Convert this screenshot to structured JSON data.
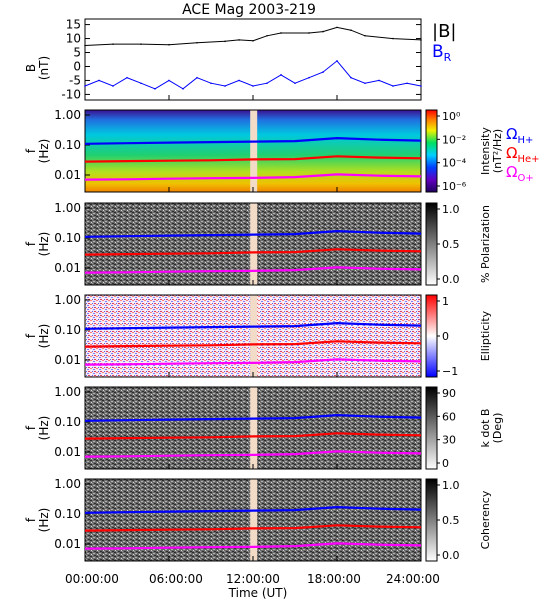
{
  "title": "ACE Mag 2003-219",
  "x_axis": {
    "label": "Time (UT)",
    "ticks": [
      "00:00:00",
      "06:00:00",
      "12:00:00",
      "18:00:00",
      "24:00:00"
    ]
  },
  "chart_data": [
    {
      "type": "line",
      "panel": "B",
      "ylabel": "B",
      "yunit": "(nT)",
      "xlim": [
        0,
        24
      ],
      "ylim": [
        -12,
        17
      ],
      "yticks": [
        "15",
        "10",
        "5",
        "0",
        "-5",
        "-10"
      ],
      "series": [
        {
          "name": "|B|",
          "color": "#000000",
          "x": [
            0,
            2,
            4,
            6,
            8,
            10,
            11,
            12,
            13,
            14,
            16,
            17,
            18,
            19,
            20,
            22,
            24
          ],
          "y": [
            7.5,
            8,
            8,
            7.8,
            8.5,
            9,
            9.5,
            9.2,
            11,
            12,
            12,
            12.5,
            14,
            13,
            11,
            10,
            9.5
          ]
        },
        {
          "name": "BR",
          "color": "#0000ff",
          "x": [
            0,
            1,
            2,
            3,
            4,
            5,
            6,
            7,
            8,
            9,
            10,
            11,
            12,
            13,
            14,
            15,
            16,
            17,
            18,
            19,
            20,
            21,
            22,
            23,
            24
          ],
          "y": [
            -7,
            -5,
            -7,
            -4,
            -6,
            -8,
            -5,
            -8,
            -4,
            -6,
            -7,
            -5,
            -7,
            -6,
            -3,
            -6,
            -4,
            -2,
            2,
            -4,
            -6,
            -5,
            -7,
            -6,
            -7
          ]
        }
      ]
    },
    {
      "type": "heatmap",
      "panel": "intensity",
      "ylabel": "f",
      "yunit": "(Hz)",
      "yticks": [
        "1.00",
        "0.10",
        "0.01"
      ],
      "colorbar_label": "Intensity",
      "colorbar_unit": "(nT²/Hz)",
      "colorbar_ticks": [
        "10⁰",
        "10⁻²",
        "10⁻⁴",
        "10⁻⁶"
      ],
      "data_gap_hours": [
        11.8,
        12.3
      ]
    },
    {
      "type": "heatmap",
      "panel": "polarization",
      "ylabel": "f",
      "yunit": "(Hz)",
      "yticks": [
        "1.00",
        "0.10",
        "0.01"
      ],
      "colorbar_label": "% Polarization",
      "colorbar_ticks": [
        "1.0",
        "0.5",
        "0.0"
      ],
      "data_gap_hours": [
        11.8,
        12.3
      ]
    },
    {
      "type": "heatmap",
      "panel": "ellipticity",
      "ylabel": "f",
      "yunit": "(Hz)",
      "yticks": [
        "1.00",
        "0.10",
        "0.01"
      ],
      "colorbar_label": "Ellipticity",
      "colorbar_ticks": [
        "1",
        "0",
        "−1"
      ],
      "data_gap_hours": [
        11.8,
        12.3
      ]
    },
    {
      "type": "heatmap",
      "panel": "kdotb",
      "ylabel": "f",
      "yunit": "(Hz)",
      "yticks": [
        "1.00",
        "0.10",
        "0.01"
      ],
      "colorbar_label": "k dot B",
      "colorbar_unit": "(Deg)",
      "colorbar_ticks": [
        "90",
        "60",
        "30",
        "0"
      ],
      "data_gap_hours": [
        11.8,
        12.3
      ]
    },
    {
      "type": "heatmap",
      "panel": "coherency",
      "ylabel": "f",
      "yunit": "(Hz)",
      "yticks": [
        "1.00",
        "0.10",
        "0.01"
      ],
      "colorbar_label": "Coherency",
      "colorbar_ticks": [
        "1.0",
        "0.5",
        "0.0"
      ],
      "data_gap_hours": [
        11.8,
        12.3
      ]
    }
  ],
  "gyrofrequencies": {
    "x_hours": [
      0,
      3,
      6,
      9,
      12,
      15,
      18,
      21,
      24
    ],
    "H": {
      "color": "#0000ff",
      "hz": [
        0.11,
        0.115,
        0.12,
        0.125,
        0.13,
        0.135,
        0.17,
        0.15,
        0.14
      ]
    },
    "He": {
      "color": "#ff0000",
      "hz": [
        0.028,
        0.029,
        0.03,
        0.031,
        0.033,
        0.034,
        0.042,
        0.038,
        0.036
      ]
    },
    "O": {
      "color": "#ff00ff",
      "hz": [
        0.007,
        0.0072,
        0.0075,
        0.0078,
        0.008,
        0.0085,
        0.0105,
        0.0095,
        0.009
      ]
    }
  },
  "legend_labels": {
    "absB": "|B|",
    "BR_main": "B",
    "BR_sub": "R",
    "omega": "Ω",
    "H": "H+",
    "He": "He+",
    "O": "O+"
  },
  "colors": {
    "H": "#0000ff",
    "He": "#ff0000",
    "O": "#ff00ff",
    "gap": "#f2dcc8"
  }
}
